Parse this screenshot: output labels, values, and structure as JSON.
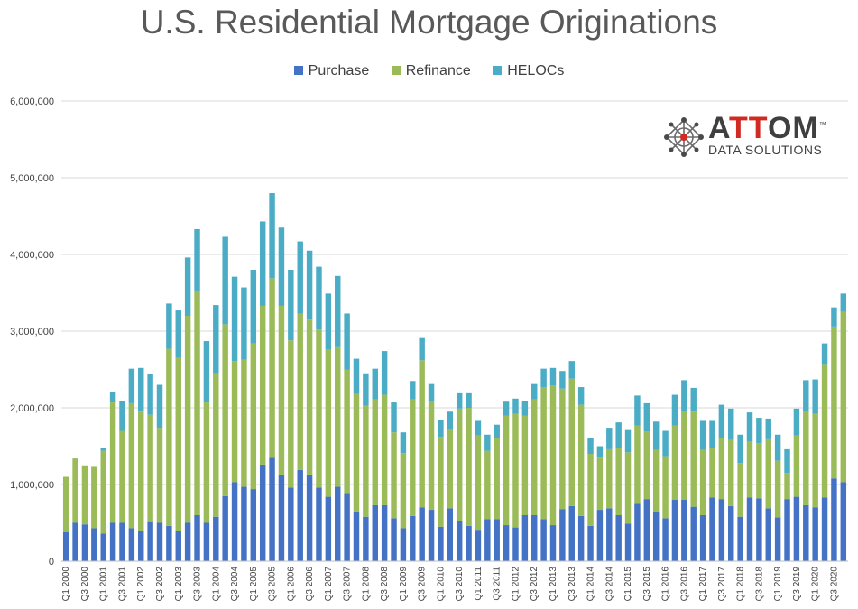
{
  "chart_data": {
    "type": "bar",
    "stacked": true,
    "title": "U.S. Residential Mortgage Originations",
    "xlabel": "",
    "ylabel": "",
    "ylim": [
      0,
      6000000
    ],
    "grid": true,
    "legend_position": "top",
    "y_ticks": [
      "0",
      "1,000,000",
      "2,000,000",
      "3,000,000",
      "4,000,000",
      "5,000,000",
      "6,000,000"
    ],
    "categories": [
      "Q1 2000",
      "Q2 2000",
      "Q3 2000",
      "Q4 2000",
      "Q1 2001",
      "Q2 2001",
      "Q3 2001",
      "Q4 2001",
      "Q1 2002",
      "Q2 2002",
      "Q3 2002",
      "Q4 2002",
      "Q1 2003",
      "Q2 2003",
      "Q3 2003",
      "Q4 2003",
      "Q1 2004",
      "Q2 2004",
      "Q3 2004",
      "Q4 2004",
      "Q1 2005",
      "Q2 2005",
      "Q3 2005",
      "Q4 2005",
      "Q1 2006",
      "Q2 2006",
      "Q3 2006",
      "Q4 2006",
      "Q1 2007",
      "Q2 2007",
      "Q3 2007",
      "Q4 2007",
      "Q1 2008",
      "Q2 2008",
      "Q3 2008",
      "Q4 2008",
      "Q1 2009",
      "Q2 2009",
      "Q3 2009",
      "Q4 2009",
      "Q1 2010",
      "Q2 2010",
      "Q3 2010",
      "Q4 2010",
      "Q1 2011",
      "Q2 2011",
      "Q3 2011",
      "Q4 2011",
      "Q1 2012",
      "Q2 2012",
      "Q3 2012",
      "Q4 2012",
      "Q1 2013",
      "Q2 2013",
      "Q3 2013",
      "Q4 2013",
      "Q1 2014",
      "Q2 2014",
      "Q3 2014",
      "Q4 2014",
      "Q1 2015",
      "Q2 2015",
      "Q3 2015",
      "Q4 2015",
      "Q1 2016",
      "Q2 2016",
      "Q3 2016",
      "Q4 2016",
      "Q1 2017",
      "Q2 2017",
      "Q3 2017",
      "Q4 2017",
      "Q1 2018",
      "Q2 2018",
      "Q3 2018",
      "Q4 2018",
      "Q1 2019",
      "Q2 2019",
      "Q3 2019",
      "Q4 2019",
      "Q1 2020",
      "Q2 2020",
      "Q3 2020",
      "Q4 2020"
    ],
    "x_tick_labels": [
      "Q1 2000",
      "Q3 2000",
      "Q1 2001",
      "Q3 2001",
      "Q1 2002",
      "Q3 2002",
      "Q1 2003",
      "Q3 2003",
      "Q1 2004",
      "Q3 2004",
      "Q1 2005",
      "Q3 2005",
      "Q1 2006",
      "Q3 2006",
      "Q1 2007",
      "Q3 2007",
      "Q1 2008",
      "Q3 2008",
      "Q1 2009",
      "Q3 2009",
      "Q1 2010",
      "Q3 2010",
      "Q1 2011",
      "Q3 2011",
      "Q1 2012",
      "Q3 2012",
      "Q1 2013",
      "Q3 2013",
      "Q1 2014",
      "Q3 2014",
      "Q1 2015",
      "Q3 2015",
      "Q1 2016",
      "Q3 2016",
      "Q1 2017",
      "Q3 2017",
      "Q1 2018",
      "Q3 2018",
      "Q1 2019",
      "Q3 2019",
      "Q1 2020",
      "Q3 2020"
    ],
    "series": [
      {
        "name": "Purchase",
        "color": "#4472c4",
        "values": [
          380000,
          500000,
          480000,
          430000,
          360000,
          500000,
          500000,
          430000,
          400000,
          510000,
          500000,
          460000,
          390000,
          500000,
          600000,
          500000,
          580000,
          850000,
          1030000,
          970000,
          940000,
          1260000,
          1350000,
          1130000,
          960000,
          1190000,
          1130000,
          960000,
          840000,
          970000,
          890000,
          650000,
          580000,
          730000,
          730000,
          560000,
          430000,
          590000,
          700000,
          670000,
          450000,
          690000,
          520000,
          460000,
          410000,
          550000,
          550000,
          470000,
          440000,
          600000,
          600000,
          550000,
          470000,
          680000,
          720000,
          590000,
          460000,
          670000,
          690000,
          600000,
          490000,
          750000,
          810000,
          640000,
          560000,
          800000,
          800000,
          710000,
          600000,
          830000,
          810000,
          720000,
          580000,
          830000,
          820000,
          690000,
          570000,
          810000,
          840000,
          730000,
          700000,
          830000,
          1080000,
          1030000
        ]
      },
      {
        "name": "Refinance",
        "color": "#9bbb59",
        "values": [
          720000,
          840000,
          770000,
          800000,
          1080000,
          1570000,
          1200000,
          1630000,
          1550000,
          1400000,
          1240000,
          2310000,
          2260000,
          2700000,
          2930000,
          1570000,
          1870000,
          2240000,
          1580000,
          1660000,
          1900000,
          2070000,
          2340000,
          2200000,
          1920000,
          2040000,
          2020000,
          2060000,
          1920000,
          1820000,
          1610000,
          1530000,
          1450000,
          1380000,
          1440000,
          1120000,
          980000,
          1520000,
          1920000,
          1420000,
          1170000,
          1030000,
          1470000,
          1540000,
          1230000,
          890000,
          1050000,
          1430000,
          1480000,
          1300000,
          1510000,
          1720000,
          1820000,
          1570000,
          1660000,
          1450000,
          940000,
          680000,
          770000,
          880000,
          930000,
          1020000,
          880000,
          810000,
          810000,
          970000,
          1160000,
          1240000,
          850000,
          650000,
          790000,
          860000,
          700000,
          730000,
          720000,
          900000,
          740000,
          340000,
          800000,
          1230000,
          1220000,
          1730000,
          1980000,
          2220000
        ]
      },
      {
        "name": "HELOCs",
        "color": "#4bacc6",
        "values": [
          0,
          0,
          0,
          0,
          40000,
          130000,
          390000,
          450000,
          570000,
          530000,
          560000,
          590000,
          620000,
          760000,
          800000,
          800000,
          890000,
          1140000,
          1100000,
          940000,
          960000,
          1100000,
          1110000,
          1020000,
          920000,
          940000,
          900000,
          820000,
          730000,
          930000,
          730000,
          460000,
          420000,
          400000,
          570000,
          390000,
          270000,
          240000,
          290000,
          220000,
          220000,
          230000,
          200000,
          190000,
          190000,
          210000,
          180000,
          180000,
          200000,
          190000,
          200000,
          240000,
          230000,
          230000,
          230000,
          230000,
          200000,
          150000,
          280000,
          330000,
          290000,
          390000,
          370000,
          370000,
          330000,
          400000,
          400000,
          310000,
          380000,
          350000,
          440000,
          410000,
          370000,
          380000,
          330000,
          270000,
          340000,
          310000,
          350000,
          400000,
          450000,
          280000,
          250000,
          240000
        ]
      }
    ]
  },
  "logo": {
    "word_a": "A",
    "word_tt": "TT",
    "word_om": "OM",
    "trademark": "™",
    "subtitle": "DATA SOLUTIONS"
  }
}
